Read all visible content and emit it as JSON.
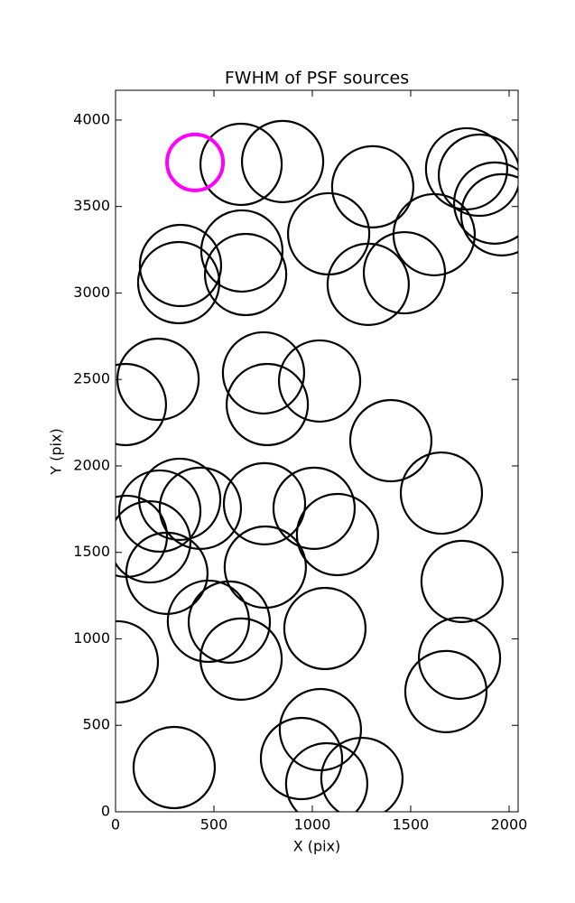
{
  "chart_data": {
    "type": "scatter",
    "title": "FWHM of PSF sources",
    "x_label": "X (pix)",
    "y_label": "Y (pix)",
    "xlim": [
      0,
      2046
    ],
    "ylim": [
      0,
      4172
    ],
    "xticks": [
      0,
      500,
      1000,
      1500,
      2000
    ],
    "yticks": [
      0,
      500,
      1000,
      1500,
      2000,
      2500,
      3000,
      3500,
      4000
    ],
    "grid": false,
    "series": [
      {
        "color": "#000000",
        "x": [
          638,
          849,
          1307,
          1784,
          1849,
          1927,
          1963,
          330,
          321,
          642,
          661,
          1083,
          1619,
          1468,
          1284,
          216,
          50,
          752,
          771,
          1037,
          1399,
          1656,
          326,
          431,
          225,
          55,
          174,
          261,
          757,
          1009,
          1128,
          761,
          1761,
          472,
          578,
          638,
          1064,
          9,
          1748,
          1679,
          1041,
          945,
          1073,
          1252,
          298
        ],
        "values": [
          3744,
          3760,
          3614,
          3718,
          3681,
          3520,
          3452,
          3159,
          3060,
          3243,
          3107,
          3342,
          3337,
          3117,
          3050,
          2501,
          2355,
          2538,
          2355,
          2491,
          2146,
          1843,
          1807,
          1755,
          1739,
          1593,
          1561,
          1379,
          1781,
          1755,
          1603,
          1415,
          1332,
          1102,
          1097,
          883,
          1060,
          867,
          888,
          695,
          475,
          308,
          162,
          193,
          256
        ]
      },
      {
        "color": "#ff00ff",
        "x": [
          404
        ],
        "values": [
          3755
        ]
      }
    ]
  }
}
